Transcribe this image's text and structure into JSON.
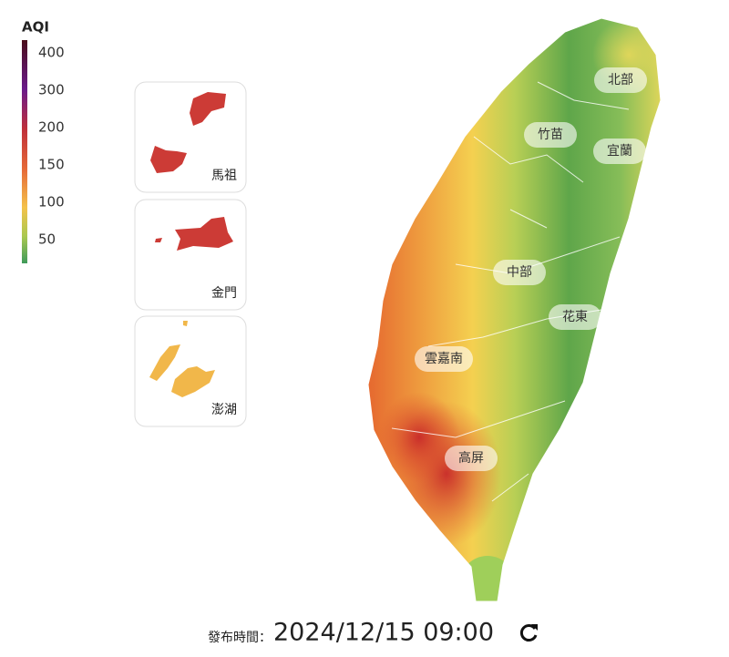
{
  "legend": {
    "title": "AQI",
    "ticks": [
      400,
      300,
      200,
      150,
      100,
      50
    ]
  },
  "insets": [
    {
      "label": "馬祖"
    },
    {
      "label": "金門"
    },
    {
      "label": "澎湖"
    }
  ],
  "regions": [
    {
      "label": "北部"
    },
    {
      "label": "竹苗"
    },
    {
      "label": "宜蘭"
    },
    {
      "label": "中部"
    },
    {
      "label": "花東"
    },
    {
      "label": "雲嘉南"
    },
    {
      "label": "高屏"
    }
  ],
  "footer": {
    "label": "發布時間：",
    "timestamp": "2024/12/15 09:00"
  }
}
